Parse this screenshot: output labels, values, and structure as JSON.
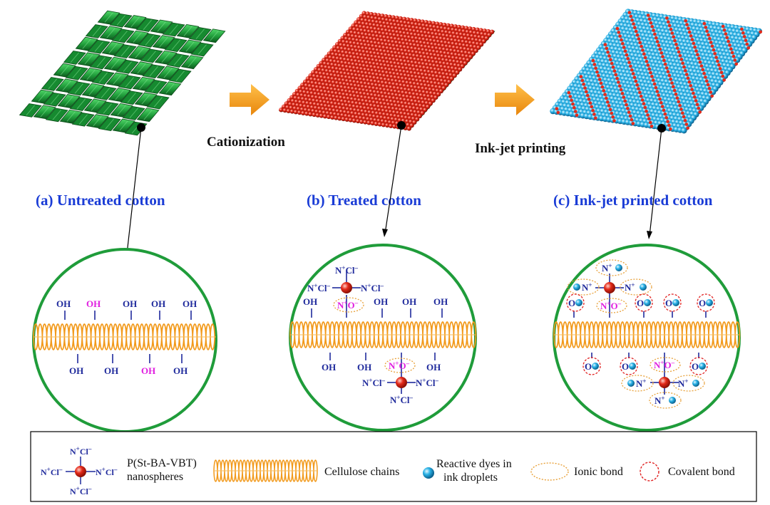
{
  "colors": {
    "fabric_green": "#1f9c3a",
    "fabric_green_light": "#3cc45a",
    "red_dot": "#e42a1a",
    "blue_dot": "#2ab2e6",
    "arrow_orange": "#f39a1b",
    "caption_blue": "#1a3cd6",
    "circle_green": "#1f9c3a",
    "chain_orange": "#f29a1c",
    "oh_blue": "#1f2a9c",
    "oh_magenta": "#e01ee0",
    "ionic_dash": "#e8a13a",
    "covalent_dash": "#e02020"
  },
  "steps": {
    "cationization": "Cationization",
    "inkjet": "Ink-jet printing"
  },
  "panels": {
    "a": {
      "caption": "(a) Untreated cotton"
    },
    "b": {
      "caption": "(b) Treated cotton"
    },
    "c": {
      "caption": "(c) Ink-jet printed cotton"
    }
  },
  "chem": {
    "oh": "OH",
    "ncl": "N+Cl-",
    "no": "N+O-",
    "np": "N+",
    "o": "O"
  },
  "legend": {
    "nanosphere_label_line1": "P(St-BA-VBT)",
    "nanosphere_label_line2": "nanospheres",
    "cellulose_label": "Cellulose chains",
    "dye_label_line1": "Reactive dyes in",
    "dye_label_line2": "ink droplets",
    "ionic_label": "Ionic bond",
    "covalent_label": "Covalent bond"
  }
}
